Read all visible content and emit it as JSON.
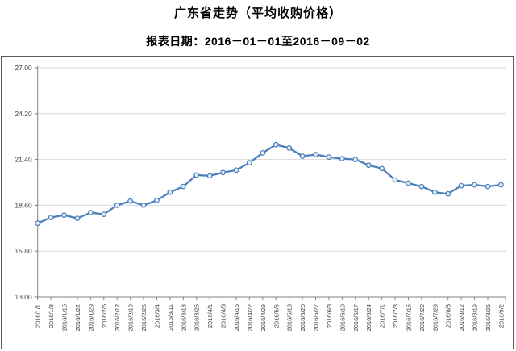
{
  "header": {
    "title": "广东省走势（平均收购价格）",
    "subtitle": "报表日期：2016－01－01至2016－09－02"
  },
  "chart_data": {
    "type": "line",
    "title": "广东省走势（平均收购价格）",
    "subtitle": "报表日期：2016－01－01至2016－09－02",
    "categories": [
      "2016/1/1",
      "2016/1/8",
      "2016/1/15",
      "2016/1/22",
      "2016/1/29",
      "2016/2/5",
      "2016/2/12",
      "2016/2/19",
      "2016/2/26",
      "2016/3/4",
      "2016/3/11",
      "2016/3/18",
      "2016/3/25",
      "2016/4/1",
      "2016/4/8",
      "2016/4/15",
      "2016/4/22",
      "2016/4/29",
      "2016/5/6",
      "2016/5/13",
      "2016/5/20",
      "2016/5/27",
      "2016/6/3",
      "2016/6/10",
      "2016/6/17",
      "2016/6/24",
      "2016/7/1",
      "2016/7/8",
      "2016/7/15",
      "2016/7/22",
      "2016/7/29",
      "2016/8/5",
      "2016/8/12",
      "2016/8/19",
      "2016/8/26",
      "2016/9/2"
    ],
    "values": [
      17.5,
      17.85,
      18.0,
      17.8,
      18.15,
      18.05,
      18.6,
      18.85,
      18.6,
      18.9,
      19.4,
      19.75,
      20.45,
      20.4,
      20.6,
      20.75,
      21.2,
      21.8,
      22.3,
      22.1,
      21.6,
      21.7,
      21.55,
      21.45,
      21.4,
      21.05,
      20.85,
      20.15,
      19.95,
      19.75,
      19.4,
      19.3,
      19.8,
      19.85,
      19.75,
      19.85
    ],
    "ylim": [
      13.0,
      27.0
    ],
    "yticks": [
      27.0,
      24.2,
      21.4,
      18.6,
      15.8,
      13.0
    ],
    "ytick_labels": [
      "27.00",
      "24.20",
      "21.40",
      "18.60",
      "15.80",
      "13.00"
    ],
    "xlabel": "",
    "ylabel": "",
    "grid": true,
    "legend": "none",
    "marker": "circle",
    "colors": {
      "line": "#4a7ebb",
      "marker_fill": "#e1ebf7",
      "marker_stroke": "#4a7ebb",
      "grid": "#d8d8d8",
      "axis": "#808080",
      "tick_text": "#404040",
      "frame_border": "#595959"
    }
  }
}
